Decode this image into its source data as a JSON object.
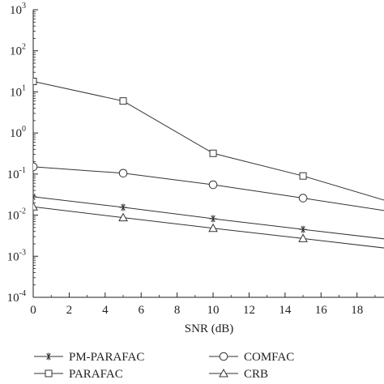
{
  "chart_data": {
    "type": "line",
    "xlabel": "SNR (dB)",
    "ylabel": "",
    "x": [
      0,
      5,
      10,
      15,
      20
    ],
    "xlim": [
      0,
      19.5
    ],
    "xticks": [
      "0",
      "2",
      "4",
      "6",
      "8",
      "10",
      "12",
      "14",
      "16",
      "18"
    ],
    "xtick_values": [
      0,
      2,
      4,
      6,
      8,
      10,
      12,
      14,
      16,
      18
    ],
    "yscale": "log",
    "ylim": [
      0.0001,
      1000
    ],
    "yticks": [
      {
        "base": "10",
        "exp": "3",
        "value": 1000
      },
      {
        "base": "10",
        "exp": "2",
        "value": 100
      },
      {
        "base": "10",
        "exp": "1",
        "value": 10
      },
      {
        "base": "10",
        "exp": "0",
        "value": 1
      },
      {
        "base": "10",
        "exp": "-1",
        "value": 0.1
      },
      {
        "base": "10",
        "exp": "-2",
        "value": 0.01
      },
      {
        "base": "10",
        "exp": "-3",
        "value": 0.001
      },
      {
        "base": "10",
        "exp": "-4",
        "value": 0.0001
      }
    ],
    "grid": false,
    "legend_position": "bottom",
    "series": [
      {
        "name": "PM-PARAFAC",
        "marker": "star",
        "values": [
          0.028,
          0.0155,
          0.0082,
          0.0045,
          0.0025
        ]
      },
      {
        "name": "PARAFAC",
        "marker": "square",
        "values": [
          18,
          6,
          0.32,
          0.09,
          0.02
        ]
      },
      {
        "name": "COMFAC",
        "marker": "circle",
        "values": [
          0.15,
          0.105,
          0.055,
          0.026,
          0.012
        ]
      },
      {
        "name": "CRB",
        "marker": "triangle",
        "values": [
          0.016,
          0.0087,
          0.0048,
          0.0027,
          0.0015
        ]
      }
    ],
    "colors": {
      "line": "#333333",
      "axis": "#222222",
      "background": "#ffffff"
    }
  }
}
